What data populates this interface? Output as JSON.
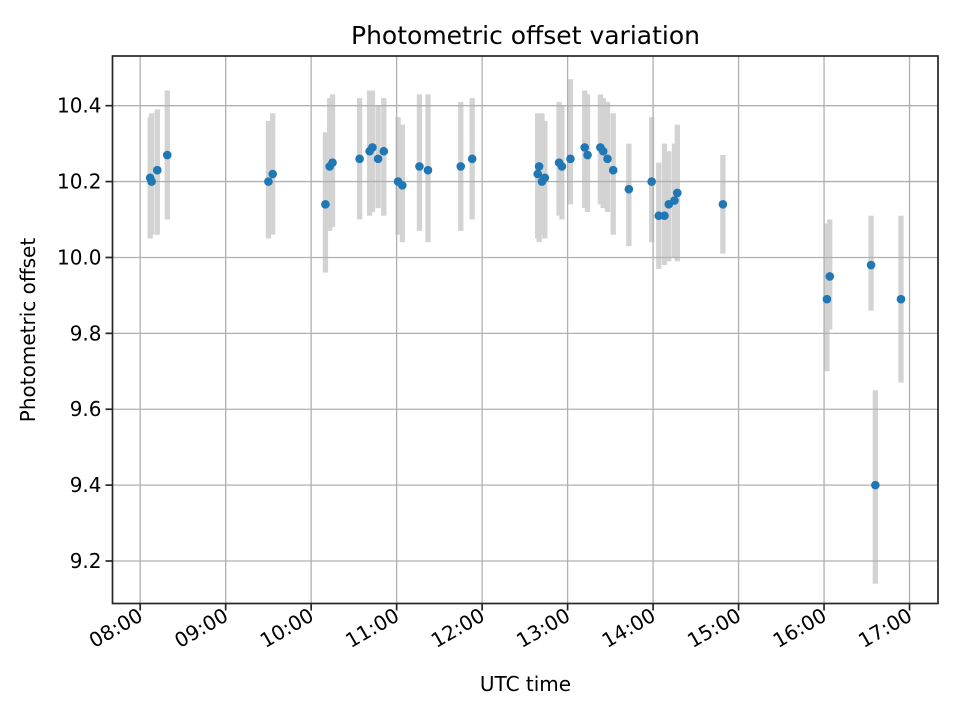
{
  "chart_data": {
    "type": "scatter",
    "title": "Photometric offset variation",
    "xlabel": "UTC time",
    "ylabel": "Photometric offset",
    "grid": true,
    "legend": null,
    "marker_color": "#1f77b4",
    "errorbar_color": "#d3d3d3",
    "grid_color": "#b0b0b0",
    "spine_color": "#262626",
    "x_ticks": [
      "08:00",
      "09:00",
      "10:00",
      "11:00",
      "12:00",
      "13:00",
      "14:00",
      "15:00",
      "16:00",
      "17:00"
    ],
    "y_ticks": [
      "10.4",
      "10.2",
      "10.0",
      "9.8",
      "9.6",
      "9.4",
      "9.2"
    ],
    "xlim_hours": [
      7.676,
      17.333
    ],
    "ylim": [
      9.088,
      10.531
    ],
    "points": [
      {
        "t": "08:07",
        "v": 10.21,
        "lo": 10.05,
        "hi": 10.37
      },
      {
        "t": "08:08",
        "v": 10.2,
        "lo": 10.06,
        "hi": 10.38
      },
      {
        "t": "08:12",
        "v": 10.23,
        "lo": 10.06,
        "hi": 10.39
      },
      {
        "t": "08:19",
        "v": 10.27,
        "lo": 10.1,
        "hi": 10.44
      },
      {
        "t": "09:30",
        "v": 10.2,
        "lo": 10.05,
        "hi": 10.36
      },
      {
        "t": "09:33",
        "v": 10.22,
        "lo": 10.06,
        "hi": 10.38
      },
      {
        "t": "10:10",
        "v": 10.14,
        "lo": 9.96,
        "hi": 10.33
      },
      {
        "t": "10:13",
        "v": 10.24,
        "lo": 10.07,
        "hi": 10.42
      },
      {
        "t": "10:15",
        "v": 10.25,
        "lo": 10.08,
        "hi": 10.43
      },
      {
        "t": "10:34",
        "v": 10.26,
        "lo": 10.1,
        "hi": 10.42
      },
      {
        "t": "10:41",
        "v": 10.28,
        "lo": 10.11,
        "hi": 10.44
      },
      {
        "t": "10:43",
        "v": 10.29,
        "lo": 10.12,
        "hi": 10.44
      },
      {
        "t": "10:47",
        "v": 10.26,
        "lo": 10.13,
        "hi": 10.4
      },
      {
        "t": "10:51",
        "v": 10.28,
        "lo": 10.11,
        "hi": 10.42
      },
      {
        "t": "11:01",
        "v": 10.2,
        "lo": 10.06,
        "hi": 10.37
      },
      {
        "t": "11:04",
        "v": 10.19,
        "lo": 10.04,
        "hi": 10.35
      },
      {
        "t": "11:16",
        "v": 10.24,
        "lo": 10.07,
        "hi": 10.43
      },
      {
        "t": "11:22",
        "v": 10.23,
        "lo": 10.04,
        "hi": 10.43
      },
      {
        "t": "11:45",
        "v": 10.24,
        "lo": 10.07,
        "hi": 10.41
      },
      {
        "t": "11:53",
        "v": 10.26,
        "lo": 10.1,
        "hi": 10.42
      },
      {
        "t": "12:39",
        "v": 10.22,
        "lo": 10.05,
        "hi": 10.38
      },
      {
        "t": "12:40",
        "v": 10.24,
        "lo": 10.04,
        "hi": 10.37
      },
      {
        "t": "12:42",
        "v": 10.2,
        "lo": 10.06,
        "hi": 10.38
      },
      {
        "t": "12:44",
        "v": 10.21,
        "lo": 10.05,
        "hi": 10.36
      },
      {
        "t": "12:54",
        "v": 10.25,
        "lo": 10.11,
        "hi": 10.41
      },
      {
        "t": "12:56",
        "v": 10.24,
        "lo": 10.1,
        "hi": 10.4
      },
      {
        "t": "13:02",
        "v": 10.26,
        "lo": 10.14,
        "hi": 10.47
      },
      {
        "t": "13:12",
        "v": 10.29,
        "lo": 10.13,
        "hi": 10.44
      },
      {
        "t": "13:14",
        "v": 10.27,
        "lo": 10.12,
        "hi": 10.43
      },
      {
        "t": "13:23",
        "v": 10.29,
        "lo": 10.14,
        "hi": 10.43
      },
      {
        "t": "13:25",
        "v": 10.28,
        "lo": 10.13,
        "hi": 10.42
      },
      {
        "t": "13:28",
        "v": 10.26,
        "lo": 10.12,
        "hi": 10.41
      },
      {
        "t": "13:32",
        "v": 10.23,
        "lo": 10.06,
        "hi": 10.38
      },
      {
        "t": "13:43",
        "v": 10.18,
        "lo": 10.03,
        "hi": 10.3
      },
      {
        "t": "13:59",
        "v": 10.2,
        "lo": 10.04,
        "hi": 10.37
      },
      {
        "t": "14:04",
        "v": 10.11,
        "lo": 9.97,
        "hi": 10.25
      },
      {
        "t": "14:08",
        "v": 10.11,
        "lo": 9.98,
        "hi": 10.3
      },
      {
        "t": "14:11",
        "v": 10.14,
        "lo": 9.99,
        "hi": 10.28
      },
      {
        "t": "14:15",
        "v": 10.15,
        "lo": 10.0,
        "hi": 10.3
      },
      {
        "t": "14:17",
        "v": 10.17,
        "lo": 9.99,
        "hi": 10.35
      },
      {
        "t": "14:49",
        "v": 10.14,
        "lo": 10.01,
        "hi": 10.27
      },
      {
        "t": "16:02",
        "v": 9.89,
        "lo": 9.7,
        "hi": 10.09
      },
      {
        "t": "16:04",
        "v": 9.95,
        "lo": 9.81,
        "hi": 10.1
      },
      {
        "t": "16:33",
        "v": 9.98,
        "lo": 9.86,
        "hi": 10.11
      },
      {
        "t": "16:36",
        "v": 9.4,
        "lo": 9.14,
        "hi": 9.65
      },
      {
        "t": "16:54",
        "v": 9.89,
        "lo": 9.67,
        "hi": 10.11
      }
    ]
  }
}
